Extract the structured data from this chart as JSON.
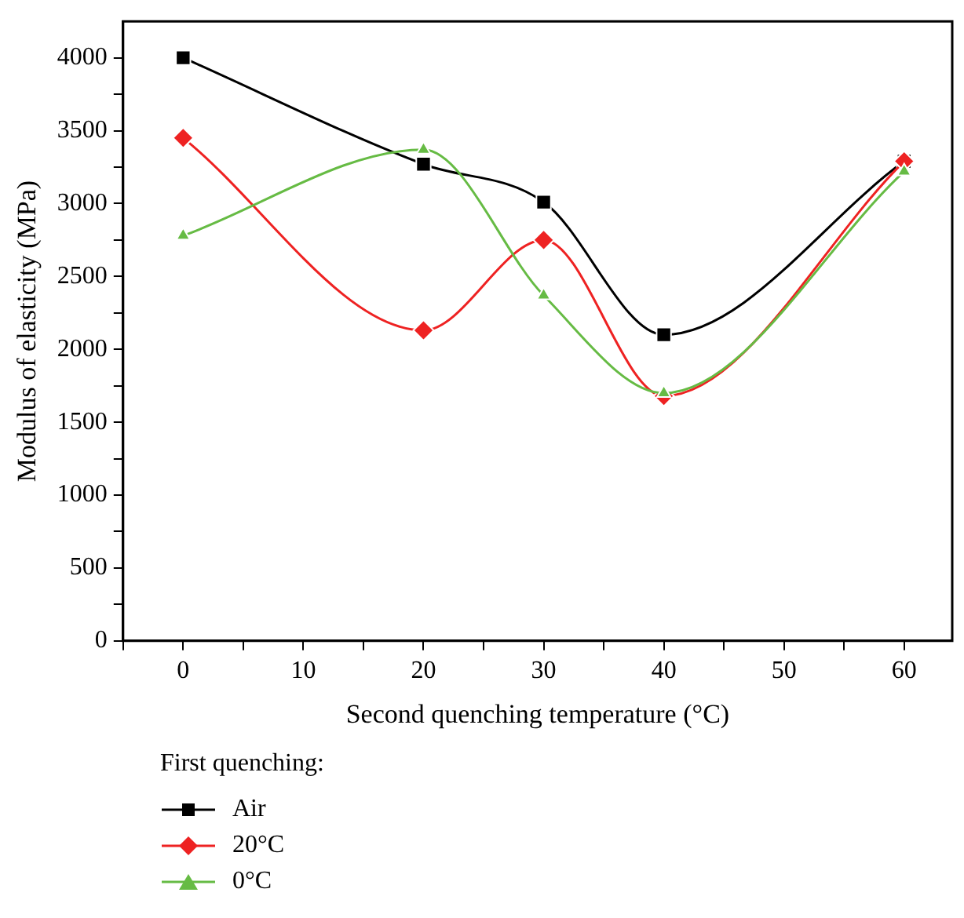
{
  "chart_data": {
    "type": "line",
    "xlabel": "Second quenching temperature (°C)",
    "ylabel": "Modulus of elasticity (MPa)",
    "legend_title": "First quenching:",
    "x": [
      0,
      20,
      30,
      40,
      60
    ],
    "series": [
      {
        "name": "Air",
        "color": "#000000",
        "marker": "square",
        "values": [
          4000,
          3270,
          3010,
          2100,
          3290
        ]
      },
      {
        "name": "20°C",
        "color": "#ee2222",
        "marker": "diamond",
        "values": [
          3450,
          2130,
          2750,
          1680,
          3290
        ]
      },
      {
        "name": "0°C",
        "color": "#66bb44",
        "marker": "triangle",
        "values": [
          2780,
          3370,
          2370,
          1700,
          3220
        ]
      }
    ],
    "xlim": [
      -5,
      64
    ],
    "xticks": [
      {
        "value": -5,
        "label": null
      },
      0,
      {
        "value": 5,
        "label": null
      },
      10,
      {
        "value": 15,
        "label": null
      },
      20,
      {
        "value": 25,
        "label": null
      },
      30,
      {
        "value": 35,
        "label": null
      },
      40,
      {
        "value": 45,
        "label": null
      },
      50,
      {
        "value": 55,
        "label": null
      },
      60
    ],
    "ylim": [
      0,
      4250
    ],
    "yticks": [
      0,
      {
        "value": 250,
        "label": null
      },
      500,
      {
        "value": 750,
        "label": null
      },
      1000,
      {
        "value": 1250,
        "label": null
      },
      1500,
      {
        "value": 1750,
        "label": null
      },
      2000,
      {
        "value": 2250,
        "label": null
      },
      2500,
      {
        "value": 2750,
        "label": null
      },
      3000,
      {
        "value": 3250,
        "label": null
      },
      3500,
      {
        "value": 3750,
        "label": null
      },
      4000
    ],
    "grid": false,
    "legend": "bottom left",
    "line_style": "solid"
  }
}
